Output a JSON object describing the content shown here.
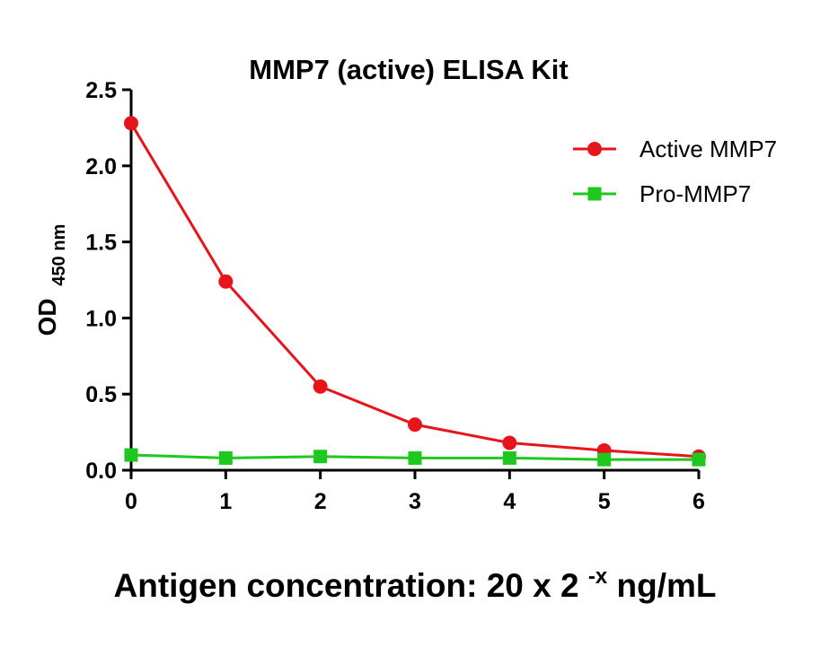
{
  "chart_data": {
    "type": "line",
    "title": "MMP7 (active) ELISA Kit",
    "xlabel": {
      "main": "Antigen concentration: 20 x 2",
      "sup": "-x",
      "unit": "ng/mL"
    },
    "ylabel": {
      "main": "OD",
      "sub": "450 nm"
    },
    "xlim": [
      0,
      6
    ],
    "ylim": [
      0,
      2.5
    ],
    "x_ticks": [
      "0",
      "1",
      "2",
      "3",
      "4",
      "5",
      "6"
    ],
    "y_ticks": [
      "0.0",
      "0.5",
      "1.0",
      "1.5",
      "2.0",
      "2.5"
    ],
    "grid": false,
    "legend_position": "top-right",
    "x": [
      0,
      1,
      2,
      3,
      4,
      5,
      6
    ],
    "series": [
      {
        "name": "Active MMP7",
        "color": "#e8141c",
        "marker": "circle",
        "values": [
          2.28,
          1.24,
          0.55,
          0.3,
          0.18,
          0.13,
          0.09
        ]
      },
      {
        "name": "Pro-MMP7",
        "color": "#1ec81e",
        "marker": "square",
        "values": [
          0.1,
          0.08,
          0.09,
          0.08,
          0.08,
          0.07,
          0.07
        ]
      }
    ]
  }
}
